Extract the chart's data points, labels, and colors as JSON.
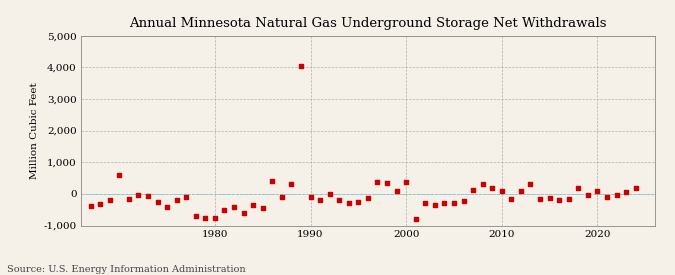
{
  "title": "Annual Minnesota Natural Gas Underground Storage Net Withdrawals",
  "ylabel": "Million Cubic Feet",
  "source": "Source: U.S. Energy Information Administration",
  "background_color": "#f5f0e8",
  "plot_background_color": "#f5f0e8",
  "marker_color": "#cc0000",
  "ylim": [
    -1000,
    5000
  ],
  "yticks": [
    -1000,
    0,
    1000,
    2000,
    3000,
    4000,
    5000
  ],
  "xlim": [
    1966,
    2026
  ],
  "xticks": [
    1980,
    1990,
    2000,
    2010,
    2020
  ],
  "years": [
    1967,
    1968,
    1969,
    1970,
    1971,
    1972,
    1973,
    1974,
    1975,
    1976,
    1977,
    1978,
    1979,
    1980,
    1981,
    1982,
    1983,
    1984,
    1985,
    1986,
    1987,
    1988,
    1989,
    1990,
    1991,
    1992,
    1993,
    1994,
    1995,
    1996,
    1997,
    1998,
    1999,
    2000,
    2001,
    2002,
    2003,
    2004,
    2005,
    2006,
    2007,
    2008,
    2009,
    2010,
    2011,
    2012,
    2013,
    2014,
    2015,
    2016,
    2017,
    2018,
    2019,
    2020,
    2021,
    2022,
    2023,
    2024
  ],
  "values": [
    -380,
    -310,
    -200,
    600,
    -150,
    -30,
    -60,
    -250,
    -420,
    -200,
    -100,
    -700,
    -750,
    -750,
    -500,
    -400,
    -600,
    -350,
    -450,
    420,
    -100,
    310,
    4050,
    -100,
    -200,
    10,
    -180,
    -300,
    -250,
    -130,
    390,
    350,
    80,
    380,
    -800,
    -300,
    -350,
    -300,
    -300,
    -220,
    120,
    300,
    200,
    100,
    -150,
    100,
    300,
    -150,
    -120,
    -190,
    -150,
    200,
    -50,
    100,
    -100,
    -50,
    50,
    200
  ]
}
